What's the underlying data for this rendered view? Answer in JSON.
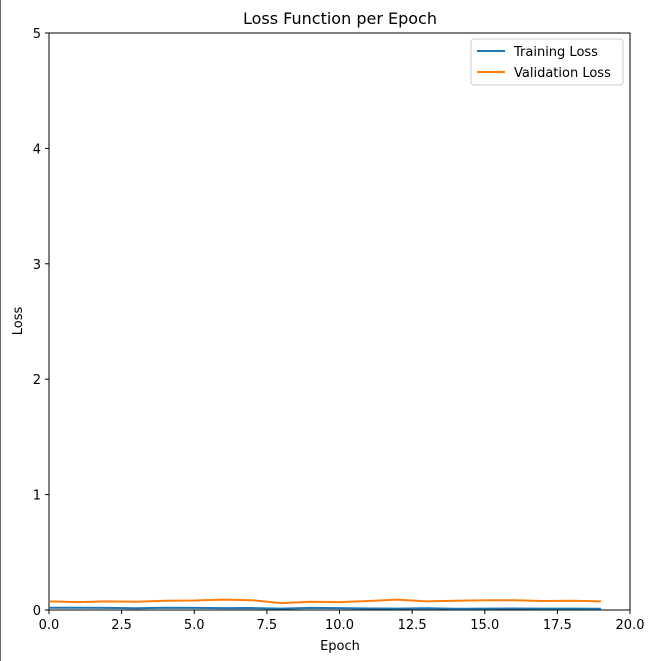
{
  "chart_data": {
    "type": "line",
    "title": "Loss Function per Epoch",
    "xlabel": "Epoch",
    "ylabel": "Loss",
    "xlim": [
      0,
      20
    ],
    "ylim": [
      0,
      5
    ],
    "xticks": [
      "0.0",
      "2.5",
      "5.0",
      "7.5",
      "10.0",
      "12.5",
      "15.0",
      "17.5",
      "20.0"
    ],
    "yticks": [
      "0",
      "1",
      "2",
      "3",
      "4",
      "5"
    ],
    "grid": false,
    "legend_position": "top-right",
    "x": [
      0,
      1,
      2,
      3,
      4,
      5,
      6,
      7,
      8,
      9,
      10,
      11,
      12,
      13,
      14,
      15,
      16,
      17,
      18,
      19
    ],
    "series": [
      {
        "name": "Training Loss",
        "color": "#1f77b4",
        "values": [
          0.02,
          0.02,
          0.018,
          0.015,
          0.02,
          0.018,
          0.016,
          0.017,
          0.012,
          0.018,
          0.016,
          0.013,
          0.012,
          0.015,
          0.011,
          0.012,
          0.013,
          0.012,
          0.012,
          0.011
        ]
      },
      {
        "name": "Validation Loss",
        "color": "#ff7f0e",
        "values": [
          0.075,
          0.068,
          0.075,
          0.072,
          0.08,
          0.082,
          0.09,
          0.085,
          0.06,
          0.072,
          0.068,
          0.078,
          0.09,
          0.075,
          0.08,
          0.085,
          0.085,
          0.078,
          0.08,
          0.075
        ]
      }
    ]
  }
}
